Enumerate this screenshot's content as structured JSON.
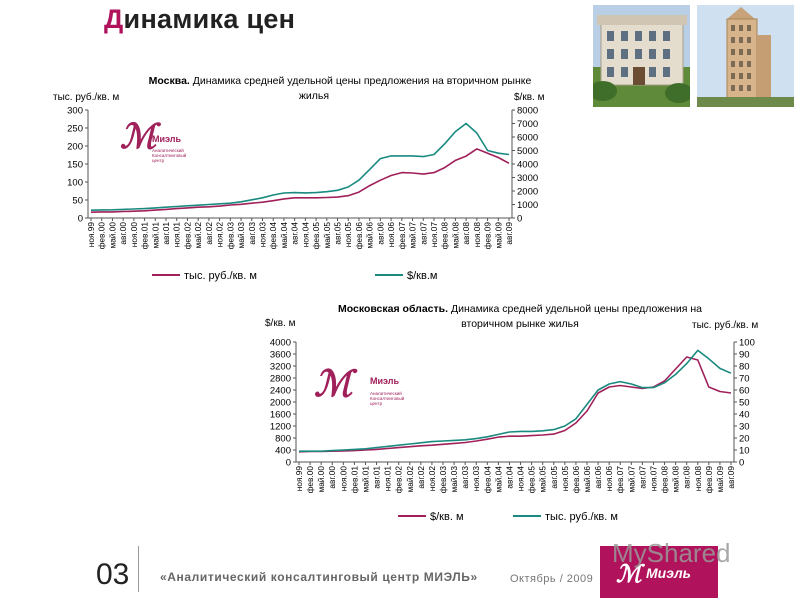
{
  "page": {
    "title": "Динамика цен",
    "title_first_letter": "Д",
    "title_rest": "инамика цен",
    "slide_number": "03",
    "footer_center": "«Аналитический консалтинговый центр МИЭЛЬ»",
    "footer_date": "Октябрь / 2009",
    "footer_logo_text": "Миэль",
    "watermark": "MyShared",
    "accent_color": "#b0125b",
    "series_colors": [
      "#a0205a",
      "#1a8a80"
    ]
  },
  "logo": {
    "brand": "Миэль",
    "subtitle_lines": [
      "Аналитический",
      "Консалтинговый",
      "центр"
    ]
  },
  "chart_data": [
    {
      "type": "line",
      "title_bold": "Москва.",
      "title_rest_line1": " Динамика средней удельной цены предложения на вторичном рынке",
      "title_line2": "жилья",
      "y_left_label": "тыс.  руб./кв. м",
      "y_right_label": "$/кв. м",
      "y_left_range": [
        0,
        300
      ],
      "y_left_ticks": [
        "0",
        "50",
        "100",
        "150",
        "200",
        "250",
        "300"
      ],
      "y_right_range": [
        0,
        8000
      ],
      "y_right_ticks": [
        "0",
        "1000",
        "2000",
        "3000",
        "4000",
        "5000",
        "6000",
        "7000",
        "8000"
      ],
      "categories": [
        "ноя.99",
        "фев.00",
        "май.00",
        "авг.00",
        "ноя.00",
        "фев.01",
        "май.01",
        "авг.01",
        "ноя.01",
        "фев.02",
        "май.02",
        "авг.02",
        "ноя.02",
        "фев.03",
        "май.03",
        "авг.03",
        "ноя.03",
        "фев.04",
        "май.04",
        "авг.04",
        "ноя.04",
        "фев.05",
        "май.05",
        "авг.05",
        "ноя.05",
        "фев.06",
        "май.06",
        "авг.06",
        "ноя.06",
        "фев.07",
        "май.07",
        "авг.07",
        "ноя.07",
        "фев.08",
        "май.08",
        "авг.08",
        "ноя.08",
        "фев.09",
        "май.09",
        "авг.09"
      ],
      "series": [
        {
          "name": "тыс. руб./кв. м",
          "axis": "left",
          "values": [
            16,
            17,
            17,
            18,
            19,
            20,
            22,
            24,
            26,
            28,
            30,
            31,
            33,
            36,
            38,
            41,
            44,
            48,
            53,
            56,
            56,
            56,
            57,
            58,
            62,
            72,
            90,
            105,
            118,
            126,
            125,
            122,
            126,
            140,
            160,
            172,
            192,
            180,
            168,
            152
          ]
        },
        {
          "name": "$/кв.м",
          "axis": "right",
          "values": [
            580,
            600,
            610,
            640,
            670,
            700,
            750,
            800,
            850,
            900,
            950,
            1000,
            1050,
            1100,
            1200,
            1350,
            1500,
            1700,
            1850,
            1880,
            1860,
            1880,
            1950,
            2050,
            2300,
            2800,
            3600,
            4400,
            4600,
            4600,
            4600,
            4550,
            4700,
            5500,
            6400,
            7000,
            6300,
            5000,
            4800,
            4700
          ]
        }
      ],
      "legend": [
        "тыс. руб./кв. м",
        "$/кв.м"
      ]
    },
    {
      "type": "line",
      "title_bold": "Московская область.",
      "title_rest_line1": " Динамика средней удельной цены предложения на",
      "title_line2": "вторичном рынке жилья",
      "y_left_label": "$/кв. м",
      "y_right_label": "тыс. руб./кв. м",
      "y_left_range": [
        0,
        4000
      ],
      "y_left_ticks": [
        "0",
        "400",
        "800",
        "1200",
        "1600",
        "2000",
        "2400",
        "2800",
        "3200",
        "3600",
        "4000"
      ],
      "y_right_range": [
        0,
        100
      ],
      "y_right_ticks": [
        "0",
        "10",
        "20",
        "30",
        "40",
        "50",
        "60",
        "70",
        "80",
        "90",
        "100"
      ],
      "categories": [
        "ноя.99",
        "фев.00",
        "май.00",
        "авг.00",
        "ноя.00",
        "фев.01",
        "май.01",
        "авг.01",
        "ноя.01",
        "фев.02",
        "май.02",
        "авг.02",
        "ноя.02",
        "фев.03",
        "май.03",
        "авг.03",
        "ноя.03",
        "фев.04",
        "май.04",
        "авг.04",
        "ноя.04",
        "фев.05",
        "май.05",
        "авг.05",
        "ноя.05",
        "фев.06",
        "май.06",
        "авг.06",
        "ноя.06",
        "фев.07",
        "май.07",
        "авг.07",
        "ноя.07",
        "фев.08",
        "май.08",
        "авг.08",
        "ноя.08",
        "фев.09",
        "май.09",
        "авг.09"
      ],
      "series": [
        {
          "name": "$/кв. м",
          "axis": "left",
          "values": [
            340,
            350,
            350,
            360,
            370,
            380,
            400,
            420,
            450,
            480,
            510,
            540,
            560,
            590,
            620,
            650,
            700,
            760,
            830,
            860,
            860,
            880,
            900,
            930,
            1050,
            1300,
            1700,
            2300,
            2500,
            2550,
            2500,
            2450,
            2500,
            2700,
            3100,
            3500,
            3400,
            2500,
            2350,
            2300
          ]
        },
        {
          "name": "тыс. руб./кв. м",
          "axis": "right",
          "values": [
            9,
            9,
            9,
            9.5,
            10,
            10.5,
            11,
            12,
            13,
            14,
            15,
            16,
            17,
            17.5,
            18,
            18.5,
            19.5,
            21,
            23,
            25,
            25.5,
            25.5,
            26,
            27,
            30,
            36,
            48,
            60,
            65,
            67,
            65,
            62,
            62,
            66,
            73,
            82,
            93,
            86,
            78,
            74
          ]
        }
      ],
      "legend": [
        "$/кв. м",
        "тыс. руб./кв. м"
      ]
    }
  ]
}
